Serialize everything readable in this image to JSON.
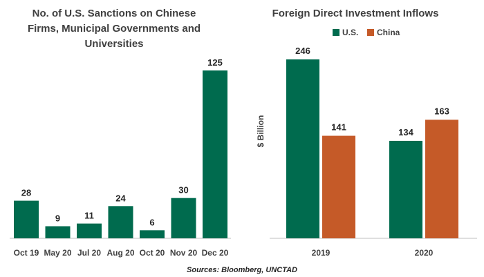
{
  "source": "Sources: Bloomberg, UNCTAD",
  "colors": {
    "us": "#006b4e",
    "china": "#c55a28",
    "text": "#404040",
    "axis": "#bfbfbf"
  },
  "chart_data": [
    {
      "type": "bar",
      "title_lines": [
        "No. of U.S. Sanctions on Chinese",
        "Firms, Municipal Governments and",
        "Universities"
      ],
      "categories": [
        "Oct 19",
        "May 20",
        "Jul 20",
        "Aug 20",
        "Oct 20",
        "Nov 20",
        "Dec 20"
      ],
      "values": [
        28,
        9,
        11,
        24,
        6,
        30,
        125
      ],
      "ylim": [
        0,
        135
      ],
      "grid": false,
      "color": "#006b4e"
    },
    {
      "type": "bar",
      "title": "Foreign Direct Investment Inflows",
      "ylabel": "$ Billion",
      "categories": [
        "2019",
        "2020"
      ],
      "series": [
        {
          "name": "U.S.",
          "values": [
            246,
            134
          ],
          "color": "#006b4e"
        },
        {
          "name": "China",
          "values": [
            141,
            163
          ],
          "color": "#c55a28"
        }
      ],
      "ylim": [
        0,
        260
      ],
      "legend": "top-center",
      "grid": false
    }
  ]
}
